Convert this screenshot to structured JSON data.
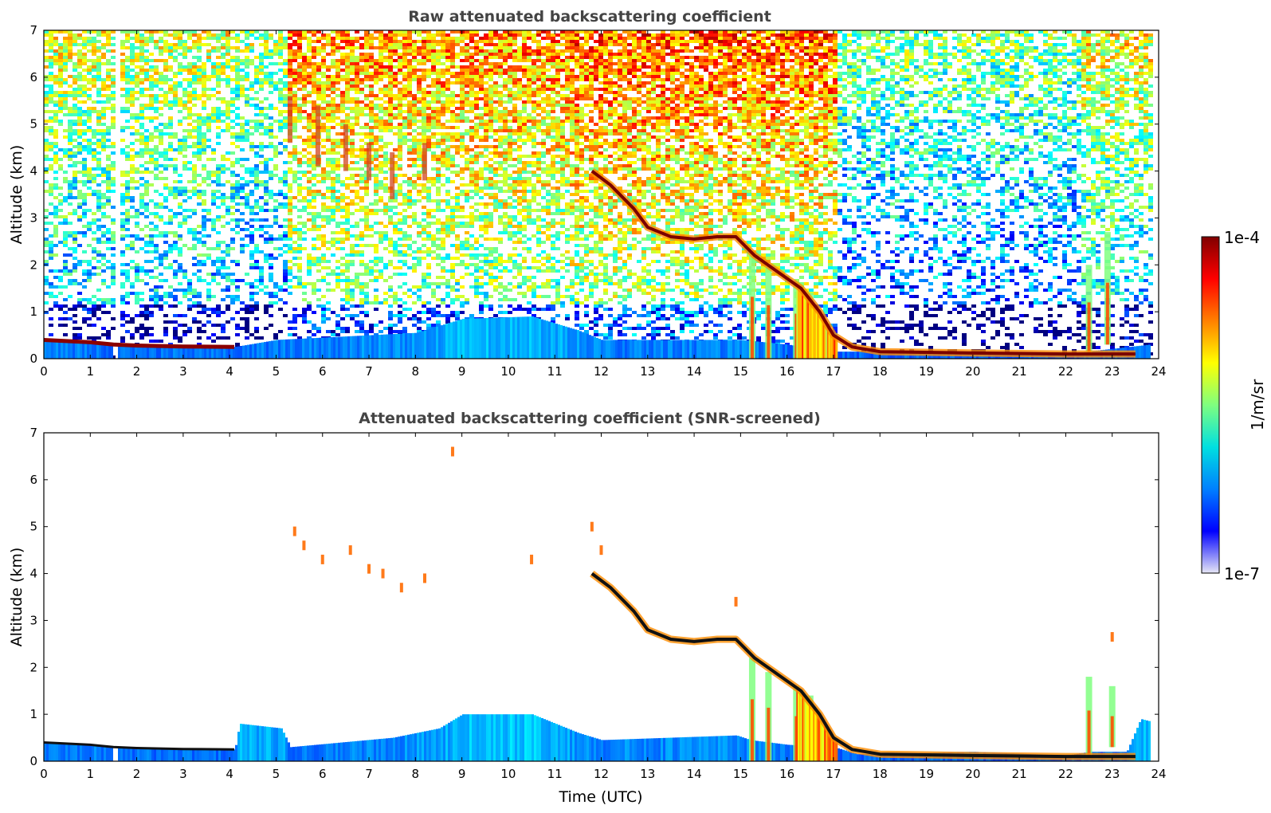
{
  "chart_data": [
    {
      "type": "heatmap",
      "title": "Raw attenuated backscattering coefficient",
      "xlabel": "",
      "ylabel": "Altitude (km)",
      "xlim": [
        0,
        24
      ],
      "ylim": [
        0,
        7
      ],
      "xticks": [
        "0",
        "1",
        "2",
        "3",
        "4",
        "5",
        "6",
        "7",
        "8",
        "9",
        "10",
        "11",
        "12",
        "13",
        "14",
        "15",
        "16",
        "17",
        "18",
        "19",
        "20",
        "21",
        "22",
        "23",
        "24"
      ],
      "yticks": [
        "0",
        "1",
        "2",
        "3",
        "4",
        "5",
        "6",
        "7"
      ],
      "data_gaps": [
        [
          1.45,
          1.58
        ]
      ],
      "noise_regimes": [
        {
          "x": [
            0,
            4.1
          ],
          "level": 0.45
        },
        {
          "x": [
            4.1,
            5.2
          ],
          "level": 0.35
        },
        {
          "x": [
            5.2,
            11.3
          ],
          "level": 0.72
        },
        {
          "x": [
            11.3,
            17.0
          ],
          "level": 0.8
        },
        {
          "x": [
            17.0,
            22.3
          ],
          "level": 0.28
        },
        {
          "x": [
            22.3,
            23.8
          ],
          "level": 0.5
        }
      ],
      "boundary_layer_top_km": [
        [
          0,
          0.4
        ],
        [
          1,
          0.36
        ],
        [
          1.5,
          0.3
        ],
        [
          4.1,
          0.25
        ],
        [
          5,
          0.4
        ],
        [
          8,
          0.55
        ],
        [
          9,
          0.85
        ],
        [
          10.5,
          0.9
        ],
        [
          11.5,
          0.6
        ],
        [
          12,
          0.4
        ],
        [
          15,
          0.4
        ],
        [
          16,
          0.3
        ],
        [
          17,
          0.15
        ],
        [
          18,
          0.15
        ],
        [
          22,
          0.1
        ],
        [
          23.8,
          0.3
        ]
      ],
      "cloud_layer_km": [
        [
          11.8,
          4.0
        ],
        [
          12.2,
          3.7
        ],
        [
          12.7,
          3.2
        ],
        [
          13.0,
          2.8
        ],
        [
          13.5,
          2.6
        ],
        [
          14.0,
          2.55
        ],
        [
          14.5,
          2.6
        ],
        [
          14.9,
          2.6
        ],
        [
          15.3,
          2.2
        ],
        [
          15.8,
          1.85
        ],
        [
          16.3,
          1.5
        ],
        [
          16.7,
          1.0
        ],
        [
          17.0,
          0.5
        ],
        [
          17.4,
          0.25
        ],
        [
          18,
          0.15
        ],
        [
          20,
          0.12
        ],
        [
          22,
          0.1
        ],
        [
          23.5,
          0.1
        ]
      ],
      "surface_layer_km": [
        [
          0,
          0.4
        ],
        [
          1,
          0.35
        ],
        [
          1.5,
          0.3
        ],
        [
          2,
          0.28
        ],
        [
          3,
          0.26
        ],
        [
          4.1,
          0.25
        ]
      ],
      "cirrus_streaks": [
        [
          5.3,
          4.6,
          5.6
        ],
        [
          5.9,
          4.1,
          5.4
        ],
        [
          6.5,
          4.0,
          5.0
        ],
        [
          7.0,
          3.8,
          4.6
        ],
        [
          7.5,
          3.4,
          4.4
        ],
        [
          8.2,
          3.8,
          4.6
        ]
      ],
      "virga": [
        [
          15.25,
          0.0,
          2.2
        ],
        [
          15.6,
          0.0,
          1.9
        ],
        [
          16.2,
          0.0,
          1.6
        ],
        [
          16.5,
          0.0,
          1.4
        ],
        [
          22.5,
          0.1,
          2.0
        ],
        [
          22.9,
          0.3,
          2.7
        ]
      ]
    },
    {
      "type": "heatmap",
      "title": "Attenuated backscattering coefficient (SNR-screened)",
      "xlabel": "Time (UTC)",
      "ylabel": "Altitude (km)",
      "xlim": [
        0,
        24
      ],
      "ylim": [
        0,
        7
      ],
      "xticks": [
        "0",
        "1",
        "2",
        "3",
        "4",
        "5",
        "6",
        "7",
        "8",
        "9",
        "10",
        "11",
        "12",
        "13",
        "14",
        "15",
        "16",
        "17",
        "18",
        "19",
        "20",
        "21",
        "22",
        "23",
        "24"
      ],
      "yticks": [
        "0",
        "1",
        "2",
        "3",
        "4",
        "5",
        "6",
        "7"
      ],
      "data_gaps": [
        [
          1.45,
          1.58
        ]
      ],
      "boundary_layer_top_km": [
        [
          0,
          0.4
        ],
        [
          1,
          0.36
        ],
        [
          1.5,
          0.3
        ],
        [
          4.1,
          0.25
        ],
        [
          4.2,
          0.8
        ],
        [
          5.1,
          0.7
        ],
        [
          5.3,
          0.3
        ],
        [
          7.5,
          0.5
        ],
        [
          8.5,
          0.7
        ],
        [
          9,
          1.0
        ],
        [
          10.5,
          1.0
        ],
        [
          11.5,
          0.6
        ],
        [
          12,
          0.45
        ],
        [
          14.9,
          0.55
        ],
        [
          15.2,
          0.45
        ],
        [
          16,
          0.35
        ],
        [
          17,
          0.3
        ],
        [
          17.5,
          0.15
        ],
        [
          20,
          0.2
        ],
        [
          22,
          0.12
        ],
        [
          22.5,
          0.2
        ],
        [
          23.3,
          0.2
        ],
        [
          23.6,
          0.9
        ],
        [
          23.8,
          0.85
        ]
      ],
      "cloud_layer_km": [
        [
          11.8,
          4.0
        ],
        [
          12.2,
          3.7
        ],
        [
          12.7,
          3.2
        ],
        [
          13.0,
          2.8
        ],
        [
          13.5,
          2.6
        ],
        [
          14.0,
          2.55
        ],
        [
          14.5,
          2.6
        ],
        [
          14.9,
          2.6
        ],
        [
          15.3,
          2.2
        ],
        [
          15.8,
          1.85
        ],
        [
          16.3,
          1.5
        ],
        [
          16.7,
          1.0
        ],
        [
          17.0,
          0.5
        ],
        [
          17.4,
          0.25
        ],
        [
          18,
          0.15
        ],
        [
          20,
          0.12
        ],
        [
          22,
          0.1
        ],
        [
          23.5,
          0.1
        ]
      ],
      "surface_layer_km": [
        [
          0,
          0.4
        ],
        [
          1,
          0.35
        ],
        [
          1.5,
          0.3
        ],
        [
          2,
          0.28
        ],
        [
          3,
          0.26
        ],
        [
          4.1,
          0.25
        ]
      ],
      "cirrus_patches": [
        [
          5.4,
          4.9
        ],
        [
          5.6,
          4.6
        ],
        [
          6.0,
          4.3
        ],
        [
          6.6,
          4.5
        ],
        [
          7.0,
          4.1
        ],
        [
          7.3,
          4.0
        ],
        [
          7.7,
          3.7
        ],
        [
          8.2,
          3.9
        ],
        [
          8.8,
          6.6
        ],
        [
          10.5,
          4.3
        ],
        [
          11.8,
          5.0
        ],
        [
          12.0,
          4.5
        ],
        [
          14.9,
          3.4
        ],
        [
          23.0,
          2.65
        ]
      ],
      "virga": [
        [
          15.25,
          0.0,
          2.2
        ],
        [
          15.6,
          0.0,
          1.9
        ],
        [
          16.2,
          0.0,
          1.6
        ],
        [
          16.5,
          0.0,
          1.4
        ],
        [
          22.5,
          0.1,
          1.8
        ],
        [
          23.0,
          0.3,
          1.6
        ]
      ]
    }
  ],
  "colorbar": {
    "min_label": "1e-7",
    "max_label": "1e-4",
    "unit": "1/m/sr",
    "colormap": "jet",
    "colors": [
      "#e6e6f5",
      "#0000ff",
      "#0080ff",
      "#00e0e0",
      "#7fff7f",
      "#ffff00",
      "#ff8000",
      "#ff0000",
      "#800000"
    ]
  }
}
